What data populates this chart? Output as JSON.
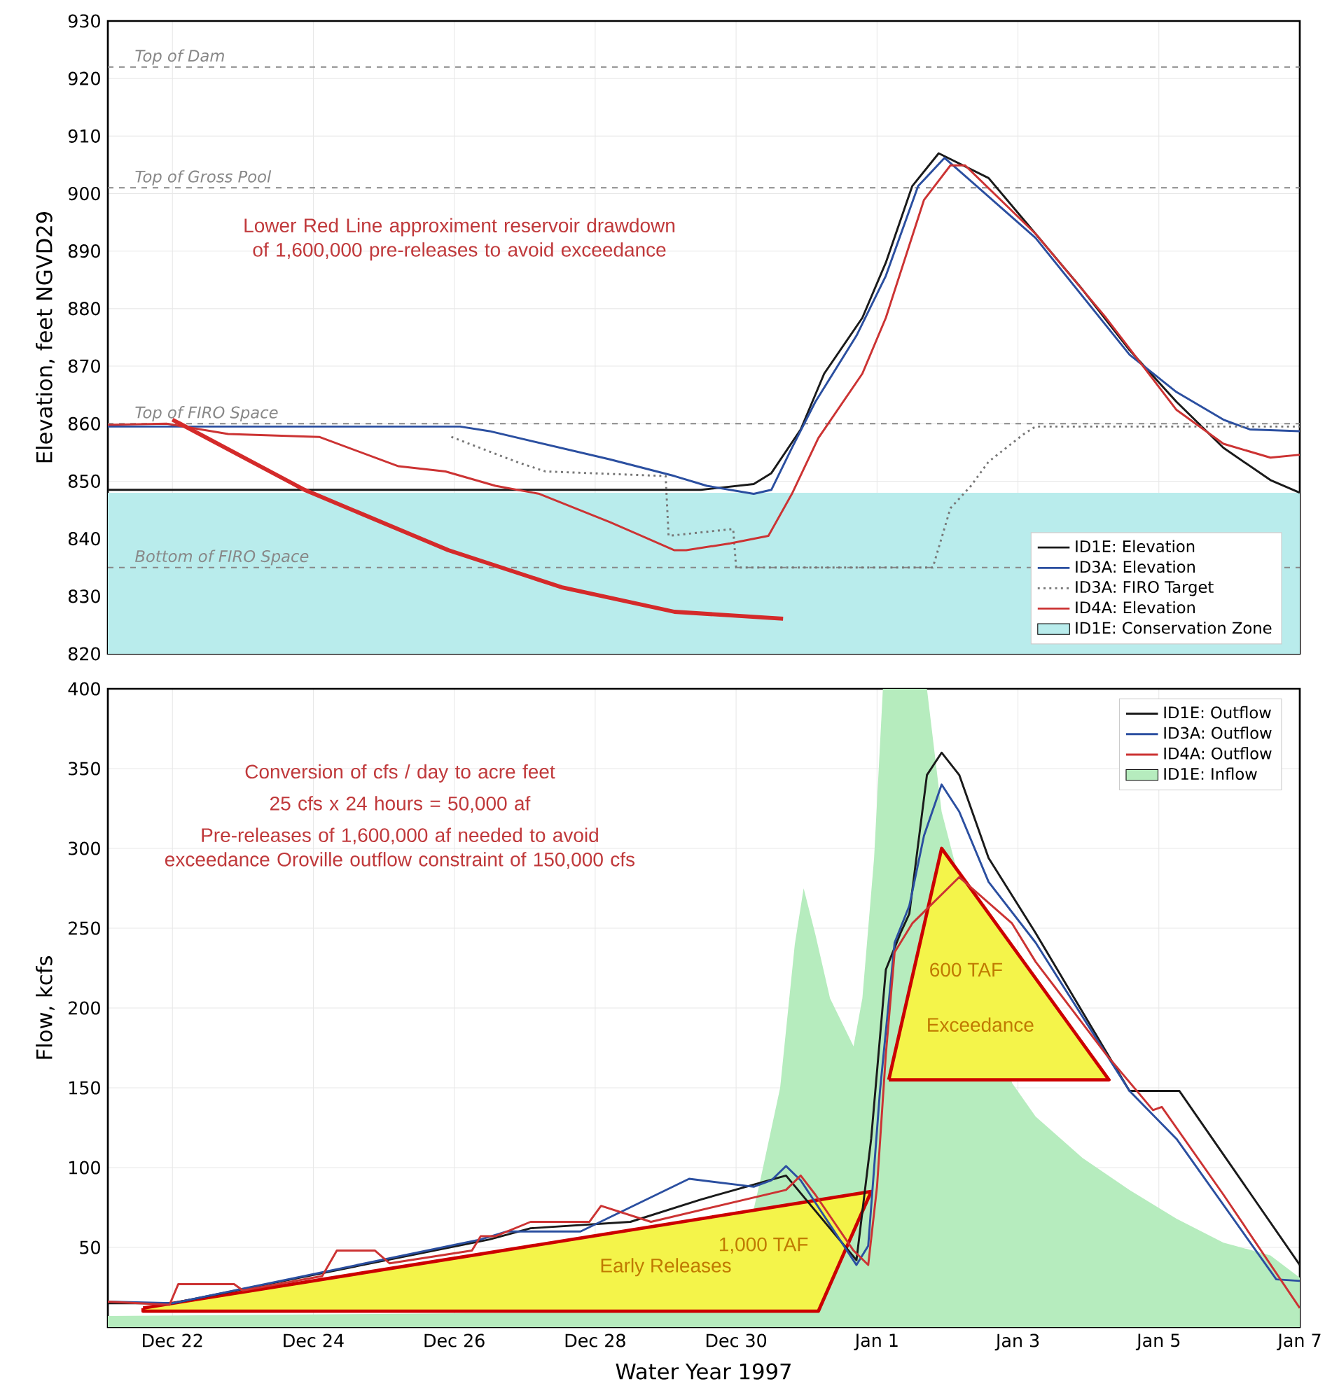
{
  "chart_data": [
    {
      "type": "line",
      "ylabel": "Elevation, feet NGVD29",
      "xlim": [
        "1996-12-21T02:00",
        "1997-01-07T00:00"
      ],
      "xticks": [
        {
          "value": "1996-12-22",
          "label": null
        },
        {
          "value": "1996-12-24",
          "label": null
        },
        {
          "value": "1996-12-26",
          "label": null
        },
        {
          "value": "1996-12-28",
          "label": null
        },
        {
          "value": "1996-12-30",
          "label": null
        },
        {
          "value": "1997-01-01",
          "label": null
        },
        {
          "value": "1997-01-03",
          "label": null
        },
        {
          "value": "1997-01-05",
          "label": null
        },
        {
          "value": "1997-01-07",
          "label": null
        }
      ],
      "tick_labels": "y",
      "ylim": [
        820,
        930
      ],
      "yticks": [
        820,
        830,
        840,
        850,
        860,
        870,
        880,
        890,
        900,
        910,
        920,
        930
      ],
      "grid": true,
      "legend": "bottom right",
      "ref_lines": [
        {
          "axis": "y",
          "value": 922,
          "label": "Top of Dam",
          "color": "#888888",
          "line_style": "dashed"
        },
        {
          "axis": "y",
          "value": 901,
          "label": "Top of Gross Pool",
          "color": "#888888",
          "line_style": "dashed"
        },
        {
          "axis": "y",
          "value": 860,
          "label": "Top of FIRO Space",
          "color": "#888888",
          "line_style": "dashed"
        },
        {
          "axis": "y",
          "value": 835,
          "label": "Bottom of FIRO Space",
          "color": "#888888",
          "line_style": "dashed"
        }
      ],
      "annotations": [
        "Lower Red Line approximent reservoir drawdown of 1,600,000 pre-releases to avoid exceedance"
      ],
      "series": [
        {
          "name": "ID1E: Conservation Zone",
          "type": "area",
          "color": "#b9ecec",
          "x": [
            "1996-12-21T02:00",
            "1997-01-07T00:00"
          ],
          "values": [
            848,
            848
          ]
        },
        {
          "name": "ID1E: Elevation",
          "color": "#1a1a1a",
          "x": [
            "1996-12-21T02:00",
            "1996-12-29T12:00",
            "1996-12-30T06:00",
            "1996-12-30T12:00",
            "1996-12-30T22:00",
            "1996-12-31T06:00",
            "1996-12-31T19:00",
            "1997-01-01T03:00",
            "1997-01-01T12:00",
            "1997-01-01T21:00",
            "1997-01-02T14:00",
            "1997-01-03T06:00",
            "1997-01-03T22:00",
            "1997-01-04T14:00",
            "1997-01-05T06:00",
            "1997-01-05T22:00",
            "1997-01-06T14:00",
            "1997-01-07T00:00"
          ],
          "values": [
            848.5,
            848.5,
            849.5,
            851.4,
            859,
            868.7,
            878.4,
            888,
            901.3,
            907,
            902.7,
            893,
            883.3,
            872.8,
            863.8,
            855.8,
            850.2,
            848
          ]
        },
        {
          "name": "ID3A: Elevation",
          "color": "#2b4fa0",
          "x": [
            "1996-12-21T02:00",
            "1996-12-26T02:00",
            "1996-12-26T12:00",
            "1996-12-28T05:00",
            "1996-12-29T03:00",
            "1996-12-29T14:00",
            "1996-12-30T06:00",
            "1996-12-30T12:00",
            "1996-12-30T19:00",
            "1996-12-31T03:00",
            "1996-12-31T17:00",
            "1997-01-01T03:00",
            "1997-01-01T14:00",
            "1997-01-01T23:00",
            "1997-01-03T06:00",
            "1997-01-04T14:00",
            "1997-01-05T06:00",
            "1997-01-05T22:00",
            "1997-01-06T07:00",
            "1997-01-07T00:00"
          ],
          "values": [
            859.5,
            859.5,
            858.7,
            853.8,
            850.9,
            849.2,
            847.8,
            848.5,
            855.8,
            863.8,
            875.3,
            885.7,
            901.3,
            906.2,
            892.3,
            872,
            865.5,
            860.7,
            859,
            858.7
          ]
        },
        {
          "name": "ID3A: FIRO Target",
          "line_style": "dotted",
          "color": "#777777",
          "x": [
            "1996-12-25T23:00",
            "1996-12-26T21:00",
            "1996-12-27T07:00",
            "1996-12-29T00:00",
            "1996-12-29T01:00",
            "1996-12-29T23:00",
            "1996-12-30T00:00",
            "1997-01-01T19:00",
            "1997-01-02T01:00",
            "1997-01-02T08:00",
            "1997-01-02T14:00",
            "1997-01-03T02:00",
            "1997-01-03T06:00",
            "1997-01-07T00:00"
          ],
          "values": [
            857.7,
            853.4,
            851.7,
            850.9,
            840.5,
            841.7,
            835,
            835,
            845.3,
            849.2,
            853.4,
            858.2,
            859.5,
            859.5
          ]
        },
        {
          "name": "ID4A: Elevation",
          "color": "#cc3333",
          "x": [
            "1996-12-21T02:00",
            "1996-12-21T22:00",
            "1996-12-22T19:00",
            "1996-12-24T02:00",
            "1996-12-25T05:00",
            "1996-12-25T21:00",
            "1996-12-26T14:00",
            "1996-12-27T05:00",
            "1996-12-28T05:00",
            "1996-12-29T03:00",
            "1996-12-29T07:00",
            "1996-12-29T22:00",
            "1996-12-30T11:00",
            "1996-12-30T19:00",
            "1996-12-31T04:00",
            "1996-12-31T19:00",
            "1997-01-01T03:00",
            "1997-01-01T16:00",
            "1997-01-02T01:00",
            "1997-01-02T06:00",
            "1997-01-03T06:00",
            "1997-01-04T06:00",
            "1997-01-05T06:00",
            "1997-01-05T22:00",
            "1997-01-06T14:00",
            "1997-01-07T00:00"
          ],
          "values": [
            859.8,
            860,
            858.2,
            857.7,
            852.6,
            851.7,
            849.2,
            847.8,
            842.9,
            838,
            838,
            839.2,
            840.5,
            847.8,
            857.5,
            868.7,
            878.4,
            898.9,
            904.9,
            904.9,
            893,
            878.4,
            862.4,
            856.5,
            854.1,
            854.6
          ]
        },
        {
          "color": "#d42a2a",
          "x": [
            "1996-12-22T00:00",
            "1996-12-23T21:00",
            "1996-12-25T22:00",
            "1996-12-27T13:00",
            "1996-12-29T03:00",
            "1996-12-30T16:00"
          ],
          "values": [
            860.7,
            848.5,
            838,
            831.5,
            827.3,
            826.1
          ]
        }
      ]
    },
    {
      "type": "line",
      "xlabel": "Water Year 1997",
      "ylabel": "Flow, kcfs",
      "xlim": [
        "1996-12-21T02:00",
        "1997-01-07T00:00"
      ],
      "xticks": [
        {
          "value": "1996-12-22",
          "label": "Dec 22"
        },
        {
          "value": "1996-12-24",
          "label": "Dec 24"
        },
        {
          "value": "1996-12-26",
          "label": "Dec 26"
        },
        {
          "value": "1996-12-28",
          "label": "Dec 28"
        },
        {
          "value": "1996-12-30",
          "label": "Dec 30"
        },
        {
          "value": "1997-01-01",
          "label": "Jan 1"
        },
        {
          "value": "1997-01-03",
          "label": "Jan 3"
        },
        {
          "value": "1997-01-05",
          "label": "Jan 5"
        },
        {
          "value": "1997-01-07",
          "label": "Jan 7"
        }
      ],
      "ylim": [
        0,
        400
      ],
      "yticks": [
        50,
        100,
        150,
        200,
        250,
        300,
        350,
        400
      ],
      "grid": true,
      "legend": "top right",
      "annotations": [
        "Conversion of cfs / day to acre feet",
        "25 cfs x 24 hours = 50,000 af",
        "Pre-releases of 1,600,000 af needed to avoid exceedance Oroville outflow constraint of 150,000 cfs",
        "1,000 TAF",
        "Early Releases",
        "600 TAF",
        "Exceedance"
      ],
      "series": [
        {
          "name": "ID1E: Outflow",
          "color": "#1a1a1a",
          "x": [
            "1996-12-21T02:00",
            "1996-12-22T00:00",
            "1996-12-26T12:00",
            "1996-12-27T02:00",
            "1996-12-28T12:00",
            "1996-12-29T12:00",
            "1996-12-30T17:00",
            "1996-12-31T17:00",
            "1996-12-31T22:00",
            "1997-01-01T03:00",
            "1997-01-01T08:00",
            "1997-01-01T11:00",
            "1997-01-01T17:00",
            "1997-01-01T22:00",
            "1997-01-02T04:00",
            "1997-01-02T14:00",
            "1997-01-03T06:00",
            "1997-01-04T14:00",
            "1997-01-05T07:00",
            "1997-01-07T00:00"
          ],
          "values": [
            15,
            15,
            55,
            62,
            66,
            80,
            95,
            42,
            118,
            224,
            247,
            259,
            346,
            360,
            346,
            294,
            247,
            148,
            148,
            39
          ]
        },
        {
          "name": "ID3A: Outflow",
          "color": "#2b4fa0",
          "x": [
            "1996-12-21T02:00",
            "1996-12-22T00:00",
            "1996-12-26T09:00",
            "1996-12-26T18:00",
            "1996-12-27T19:00",
            "1996-12-29T08:00",
            "1996-12-30T06:00",
            "1996-12-30T12:00",
            "1996-12-30T17:00",
            "1996-12-30T22:00",
            "1996-12-31T17:00",
            "1996-12-31T21:00",
            "1997-01-01T01:00",
            "1997-01-01T06:00",
            "1997-01-01T11:00",
            "1997-01-01T16:00",
            "1997-01-01T22:00",
            "1997-01-02T04:00",
            "1997-01-02T14:00",
            "1997-01-03T06:00",
            "1997-01-04T14:00",
            "1997-01-05T06:00",
            "1997-01-06T16:00",
            "1997-01-07T00:00"
          ],
          "values": [
            16,
            15,
            55,
            60,
            60,
            93,
            88,
            92,
            101,
            92,
            39,
            51,
            148,
            241,
            264,
            308,
            340,
            323,
            279,
            241,
            148,
            118,
            30,
            29
          ]
        },
        {
          "name": "ID4A: Outflow",
          "color": "#cc3333",
          "x": [
            "1996-12-21T02:00",
            "1996-12-21T23:00",
            "1996-12-22T02:00",
            "1996-12-22T21:00",
            "1996-12-23T00:00",
            "1996-12-24T03:00",
            "1996-12-24T08:00",
            "1996-12-24T21:00",
            "1996-12-25T02:00",
            "1996-12-26T06:00",
            "1996-12-26T09:00",
            "1996-12-26T14:00",
            "1996-12-27T02:00",
            "1996-12-27T22:00",
            "1996-12-28T02:00",
            "1996-12-28T19:00",
            "1996-12-30T17:00",
            "1996-12-30T22:00",
            "1996-12-31T03:00",
            "1996-12-31T16:00",
            "1996-12-31T21:00",
            "1997-01-01T00:00",
            "1997-01-01T03:00",
            "1997-01-01T06:00",
            "1997-01-01T12:00",
            "1997-01-02T04:00",
            "1997-01-02T22:00",
            "1997-01-03T06:00",
            "1997-01-04T06:00",
            "1997-01-04T22:00",
            "1997-01-05T01:00",
            "1997-01-05T22:00",
            "1997-01-07T00:00"
          ],
          "values": [
            16,
            14,
            27,
            27,
            23,
            32,
            48,
            48,
            40,
            48,
            57,
            57,
            66,
            66,
            76,
            66,
            86,
            95,
            83,
            48,
            39,
            88,
            171,
            235,
            253,
            282,
            253,
            229,
            171,
            136,
            138,
            83,
            12
          ]
        },
        {
          "name": "ID1E: Inflow",
          "type": "area",
          "color": "#b6ecbe",
          "x": [
            "1996-12-21T02:00",
            "1996-12-29T22:00",
            "1996-12-30T08:00",
            "1996-12-30T15:00",
            "1996-12-30T20:00",
            "1996-12-30T23:00",
            "1996-12-31T03:00",
            "1996-12-31T08:00",
            "1996-12-31T16:00",
            "1996-12-31T19:00",
            "1996-12-31T23:00",
            "1997-01-01T02:00",
            "1997-01-01T17:00",
            "1997-01-01T22:00",
            "1997-01-02T01:00",
            "1997-01-02T11:00",
            "1997-01-02T22:00",
            "1997-01-03T06:00",
            "1997-01-03T22:00",
            "1997-01-04T14:00",
            "1997-01-05T06:00",
            "1997-01-05T22:00",
            "1997-01-06T14:00",
            "1997-01-07T00:00"
          ],
          "values": [
            7,
            10,
            90,
            150,
            240,
            275,
            246,
            206,
            176,
            206,
            294,
            400,
            400,
            323,
            null,
            null,
            153,
            132,
            106,
            86,
            68,
            53,
            45,
            31
          ]
        },
        {
          "type": "area",
          "color": "#f4f44a",
          "x": [
            "1996-12-21T14:00",
            "1996-12-31T22:00",
            "1996-12-31T04:00",
            "1996-12-21T14:00"
          ],
          "values": [
            12,
            85,
            10,
            10
          ]
        },
        {
          "type": "area",
          "color": "#f4f44a",
          "x": [
            "1997-01-01T04:00",
            "1997-01-01T22:00",
            "1997-01-04T07:00"
          ],
          "values": [
            155,
            300,
            155
          ]
        }
      ]
    }
  ]
}
